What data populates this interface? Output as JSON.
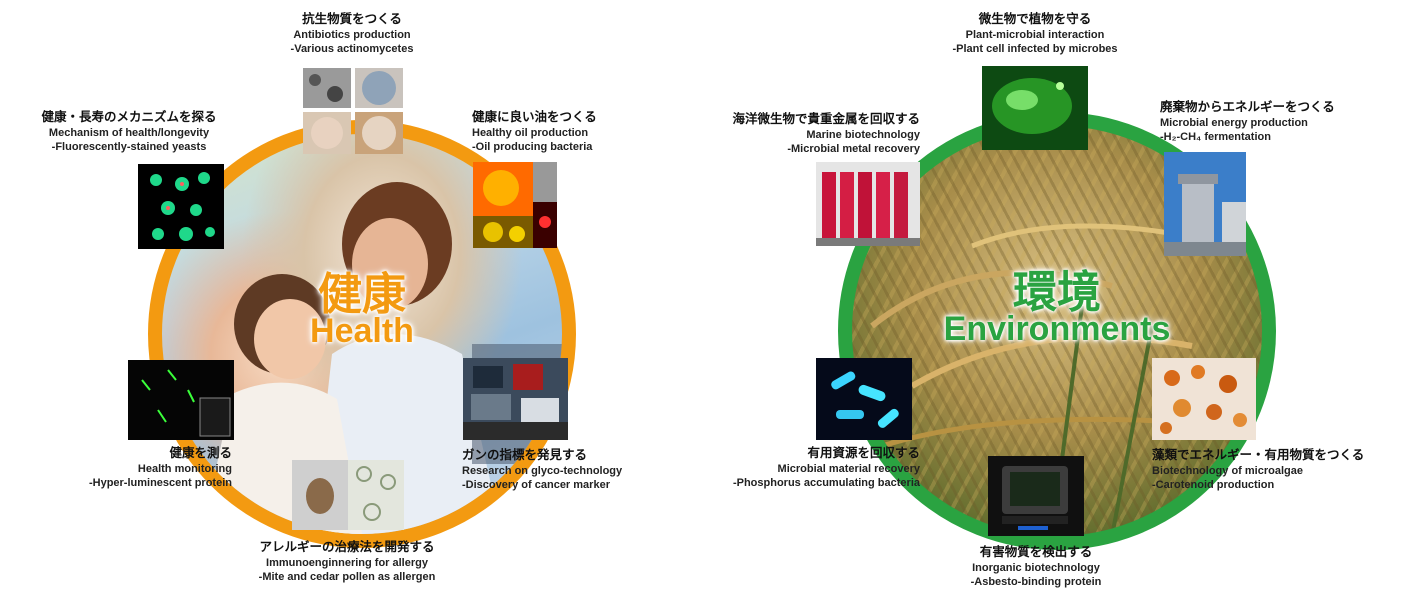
{
  "health": {
    "title_jp": "健康",
    "title_en": "Health",
    "ring_color": "#f39a11",
    "items": [
      {
        "jp": "抗生物質をつくる",
        "en1": "Antibiotics production",
        "en2": "-Various actinomycetes"
      },
      {
        "jp": "健康に良い油をつくる",
        "en1": "Healthy oil production",
        "en2": "-Oil producing bacteria"
      },
      {
        "jp": "ガンの指標を発見する",
        "en1": "Research on glyco-technology",
        "en2": "-Discovery of cancer marker"
      },
      {
        "jp": "アレルギーの治療法を開発する",
        "en1": "Immunoenginnering for allergy",
        "en2": "-Mite and cedar pollen as allergen"
      },
      {
        "jp": "健康を測る",
        "en1": "Health monitoring",
        "en2": "-Hyper-luminescent protein"
      },
      {
        "jp": "健康・長寿のメカニズムを探る",
        "en1": "Mechanism of health/longevity",
        "en2": "-Fluorescently-stained yeasts"
      }
    ]
  },
  "environments": {
    "title_jp": "環境",
    "title_en": "Environments",
    "ring_color": "#2aa341",
    "items": [
      {
        "jp": "微生物で植物を守る",
        "en1": "Plant-microbial interaction",
        "en2": "-Plant cell infected by microbes"
      },
      {
        "jp": "廃棄物からエネルギーをつくる",
        "en1": "Microbial energy production",
        "en2": "-H₂-CH₄ fermentation"
      },
      {
        "jp": "藻類でエネルギー・有用物質をつくる",
        "en1": "Biotechnology of microalgae",
        "en2": "-Carotenoid production"
      },
      {
        "jp": "有害物質を検出する",
        "en1": "Inorganic biotechnology",
        "en2": "-Asbesto-binding protein"
      },
      {
        "jp": "有用資源を回収する",
        "en1": "Microbial material recovery",
        "en2": "-Phosphorus accumulating bacteria"
      },
      {
        "jp": "海洋微生物で貴重金属を回収する",
        "en1": "Marine biotechnology",
        "en2": "-Microbial metal recovery"
      }
    ]
  }
}
